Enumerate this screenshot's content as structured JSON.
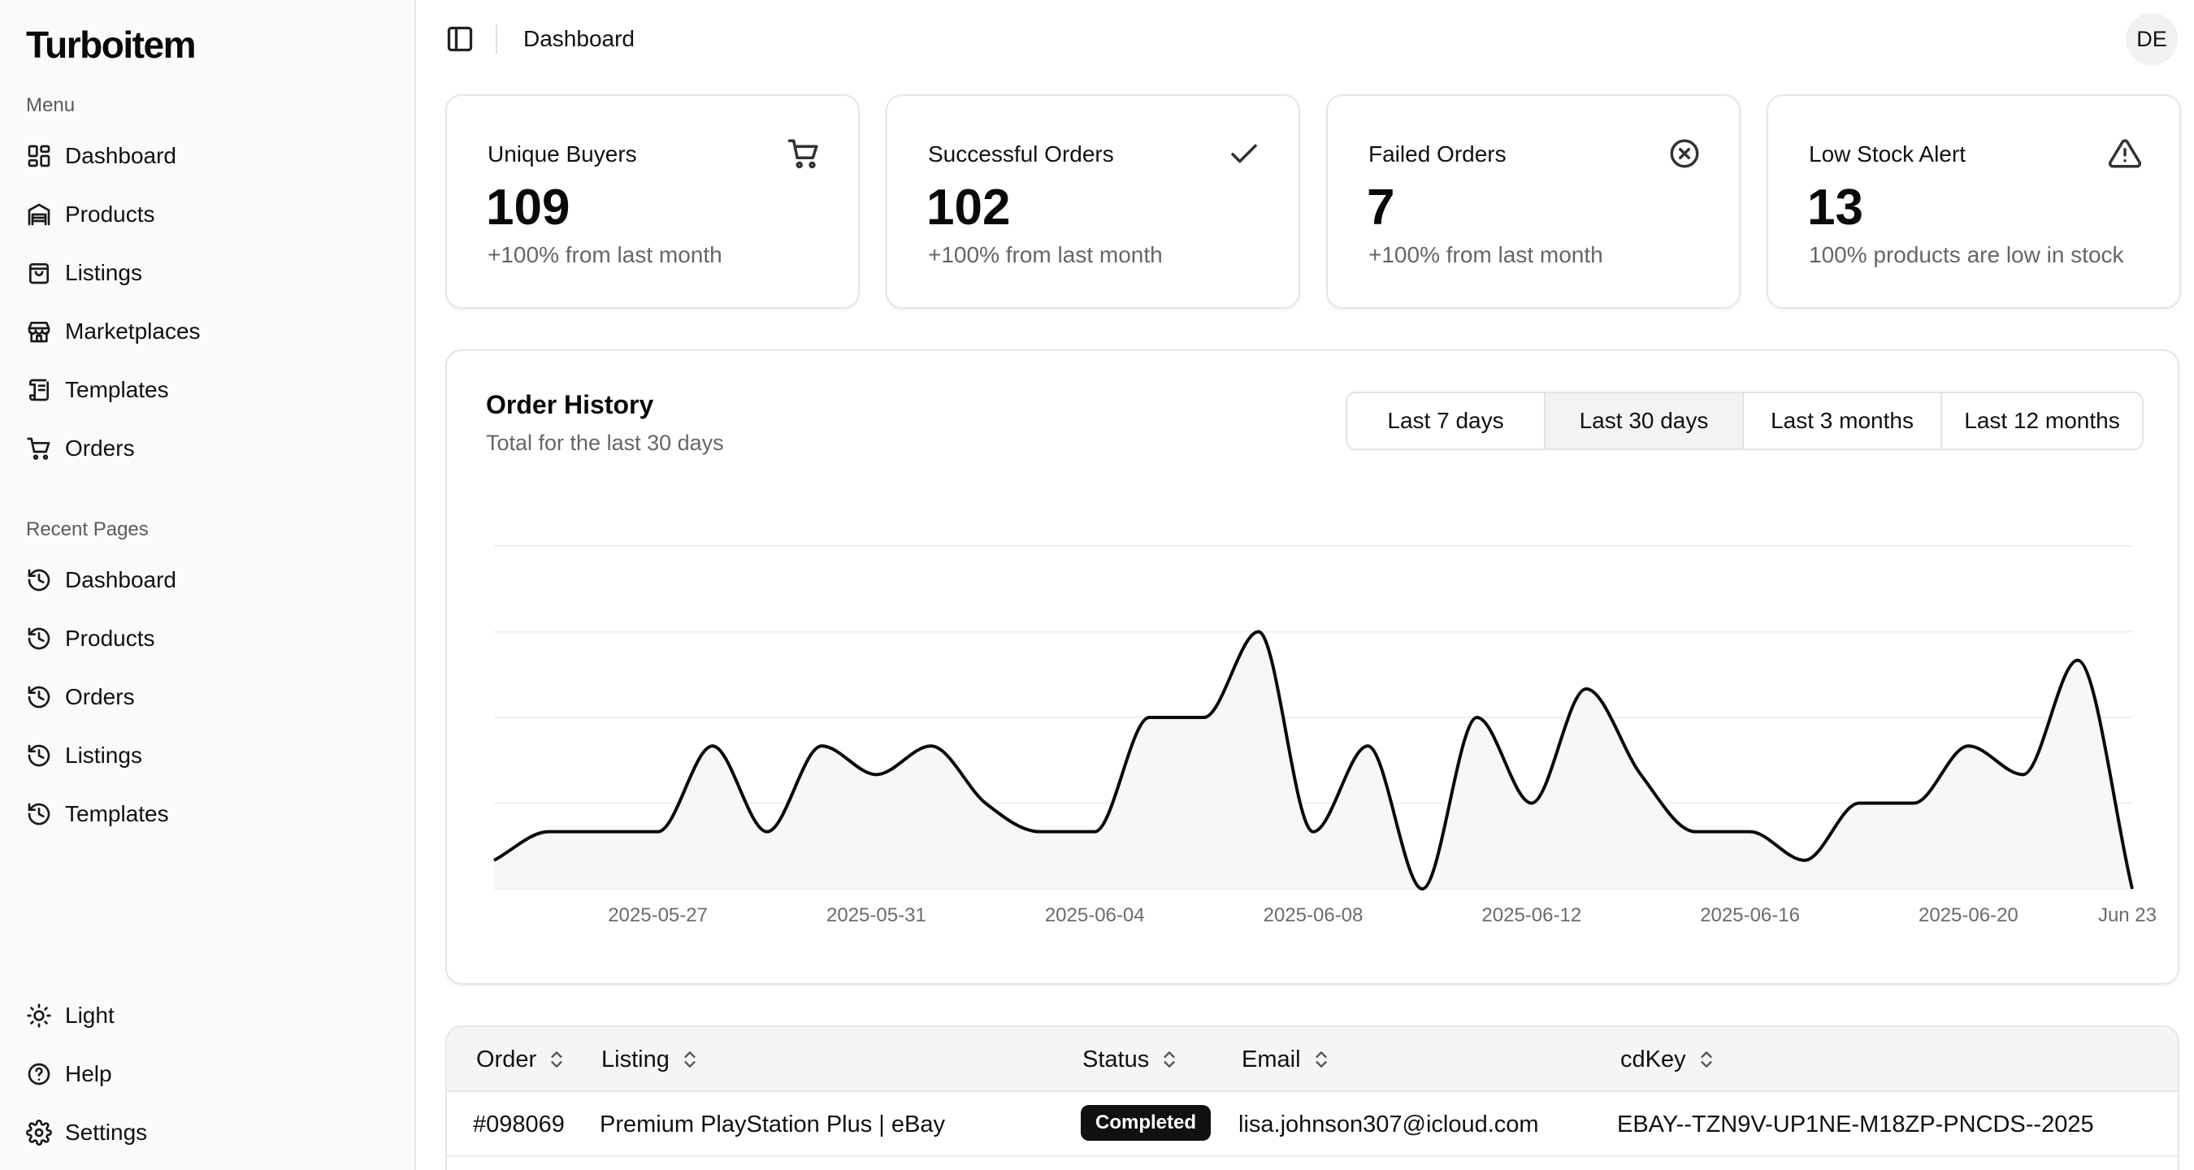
{
  "app": {
    "name": "Turboitem"
  },
  "sidebar": {
    "menu_label": "Menu",
    "menu": [
      {
        "label": "Dashboard",
        "icon": "dashboard-icon"
      },
      {
        "label": "Products",
        "icon": "warehouse-icon"
      },
      {
        "label": "Listings",
        "icon": "shopping-bag-icon"
      },
      {
        "label": "Marketplaces",
        "icon": "store-icon"
      },
      {
        "label": "Templates",
        "icon": "scroll-icon"
      },
      {
        "label": "Orders",
        "icon": "cart-icon"
      }
    ],
    "recent_label": "Recent Pages",
    "recent": [
      {
        "label": "Dashboard",
        "icon": "history-icon"
      },
      {
        "label": "Products",
        "icon": "history-icon"
      },
      {
        "label": "Orders",
        "icon": "history-icon"
      },
      {
        "label": "Listings",
        "icon": "history-icon"
      },
      {
        "label": "Templates",
        "icon": "history-icon"
      }
    ],
    "footer": [
      {
        "label": "Light",
        "icon": "sun-icon"
      },
      {
        "label": "Help",
        "icon": "help-circle-icon"
      },
      {
        "label": "Settings",
        "icon": "gear-icon"
      }
    ]
  },
  "header": {
    "title": "Dashboard",
    "avatar_initials": "DE"
  },
  "stats": [
    {
      "title": "Unique Buyers",
      "value": "109",
      "sub": "+100% from last month",
      "icon": "cart-icon"
    },
    {
      "title": "Successful Orders",
      "value": "102",
      "sub": "+100% from last month",
      "icon": "check-icon"
    },
    {
      "title": "Failed Orders",
      "value": "7",
      "sub": "+100% from last month",
      "icon": "x-circle-icon"
    },
    {
      "title": "Low Stock Alert",
      "value": "13",
      "sub": "100% products are low in stock",
      "icon": "alert-triangle-icon"
    }
  ],
  "order_history": {
    "title": "Order History",
    "subtitle": "Total for the last 30 days",
    "ranges": [
      "Last 7 days",
      "Last 30 days",
      "Last 3 months",
      "Last 12 months"
    ],
    "active_range": "Last 30 days"
  },
  "chart_data": {
    "type": "area",
    "title": "Order History",
    "x": [
      "2025-05-24",
      "2025-05-25",
      "2025-05-26",
      "2025-05-27",
      "2025-05-28",
      "2025-05-29",
      "2025-05-30",
      "2025-05-31",
      "2025-06-01",
      "2025-06-02",
      "2025-06-03",
      "2025-06-04",
      "2025-06-05",
      "2025-06-06",
      "2025-06-07",
      "2025-06-08",
      "2025-06-09",
      "2025-06-10",
      "2025-06-11",
      "2025-06-12",
      "2025-06-13",
      "2025-06-14",
      "2025-06-15",
      "2025-06-16",
      "2025-06-17",
      "2025-06-18",
      "2025-06-19",
      "2025-06-20",
      "2025-06-21",
      "2025-06-22",
      "2025-06-23"
    ],
    "values": [
      1,
      2,
      2,
      2,
      5,
      2,
      5,
      4,
      5,
      3,
      2,
      2,
      6,
      6,
      9,
      2,
      5,
      0,
      6,
      3,
      7,
      4,
      2,
      2,
      1,
      3,
      3,
      5,
      4,
      8,
      0
    ],
    "x_tick_labels": [
      "2025-05-27",
      "2025-05-31",
      "2025-06-04",
      "2025-06-08",
      "2025-06-12",
      "2025-06-16",
      "2025-06-20",
      "Jun 23"
    ],
    "ylim": [
      0,
      12
    ],
    "grid": true,
    "legend": "none",
    "line_color": "#0a0a0a",
    "fill_color": "#f7f7f7"
  },
  "orders_table": {
    "columns": [
      "Order",
      "Listing",
      "Status",
      "Email",
      "cdKey"
    ],
    "rows": [
      {
        "order": "#098069",
        "listing": "Premium PlayStation Plus | eBay",
        "status": "Completed",
        "email": "lisa.johnson307@icloud.com",
        "cdkey": "EBAY--TZN9V-UP1NE-M18ZP-PNCDS--2025"
      }
    ]
  }
}
